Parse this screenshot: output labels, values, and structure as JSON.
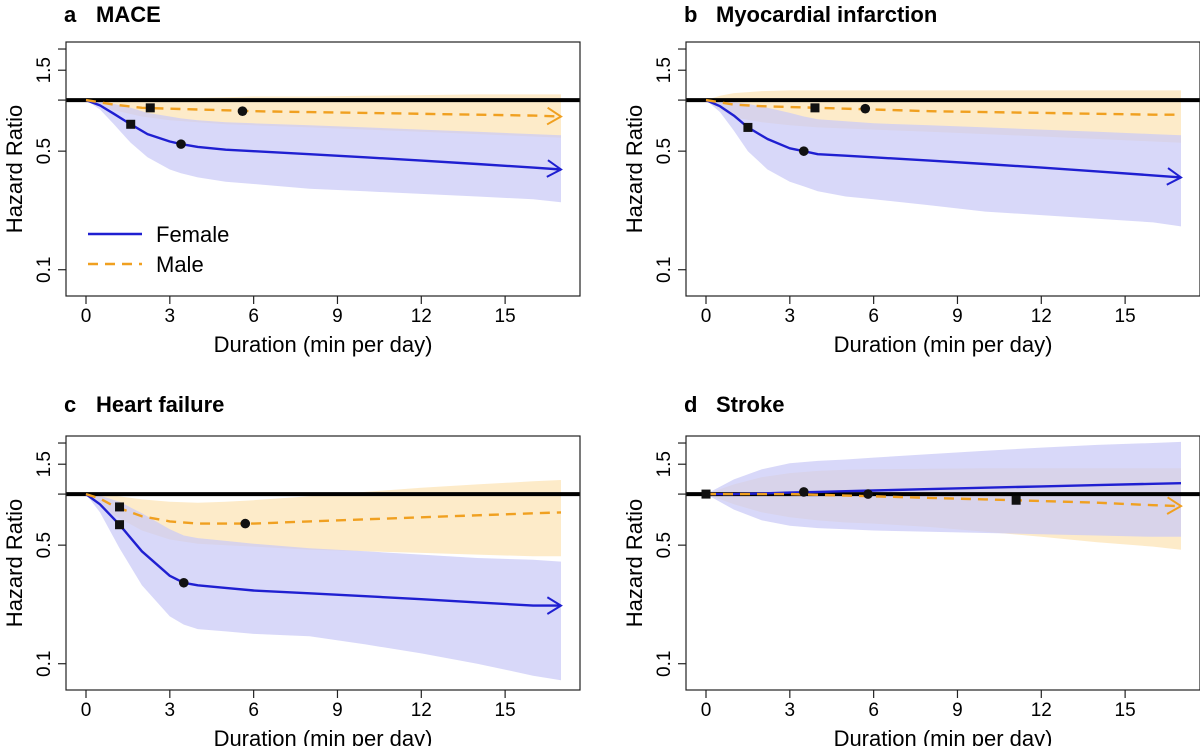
{
  "colors": {
    "female": "#1f1fd1",
    "male": "#f0a020",
    "female_band": "#c9c9f6",
    "male_band": "#fde7c0",
    "reference": "#000000"
  },
  "legend": [
    {
      "name": "Female",
      "style": "solid",
      "color_key": "female"
    },
    {
      "name": "Male",
      "style": "dashed",
      "color_key": "male"
    }
  ],
  "chart_data": [
    {
      "type": "line",
      "letter": "a",
      "title": "MACE",
      "xlabel": "Duration (min per day)",
      "ylabel": "Hazard Ratio",
      "xlim": [
        0,
        17
      ],
      "ylim_log": [
        0.07,
        2.2
      ],
      "xticks": [
        0,
        3,
        6,
        9,
        12,
        15
      ],
      "yticks": [
        0.1,
        0.5,
        1.5
      ],
      "yticks_extra": [
        1.0,
        2.0
      ],
      "xtick_labels": [
        "0",
        "3",
        "6",
        "9",
        "12",
        "15"
      ],
      "ytick_labels": [
        "0.1",
        "0.5",
        "1.5"
      ],
      "reference_line": 1.0,
      "show_legend": true,
      "series": [
        {
          "name": "Female",
          "x": [
            0,
            0.5,
            1,
            1.6,
            2.2,
            3,
            3.4,
            4,
            5,
            6,
            8,
            10,
            12,
            14,
            16,
            17
          ],
          "y": [
            1.0,
            0.93,
            0.83,
            0.72,
            0.63,
            0.57,
            0.55,
            0.53,
            0.51,
            0.5,
            0.48,
            0.46,
            0.44,
            0.42,
            0.4,
            0.39
          ],
          "lower": [
            1.0,
            0.88,
            0.72,
            0.56,
            0.46,
            0.39,
            0.37,
            0.35,
            0.33,
            0.32,
            0.3,
            0.29,
            0.28,
            0.27,
            0.26,
            0.25
          ],
          "upper": [
            1.0,
            0.98,
            0.95,
            0.9,
            0.84,
            0.8,
            0.78,
            0.76,
            0.74,
            0.73,
            0.71,
            0.69,
            0.67,
            0.65,
            0.63,
            0.62
          ],
          "markers": [
            {
              "shape": "square",
              "x": 1.6,
              "y": 0.72
            },
            {
              "shape": "circle",
              "x": 3.4,
              "y": 0.55
            }
          ],
          "arrow": true
        },
        {
          "name": "Male",
          "x": [
            0,
            0.5,
            1,
            2,
            3,
            4,
            5,
            6,
            8,
            10,
            12,
            14,
            16,
            17
          ],
          "y": [
            1.0,
            0.97,
            0.94,
            0.9,
            0.89,
            0.88,
            0.87,
            0.86,
            0.85,
            0.84,
            0.83,
            0.82,
            0.81,
            0.8
          ],
          "lower": [
            1.0,
            0.93,
            0.87,
            0.8,
            0.76,
            0.74,
            0.72,
            0.71,
            0.69,
            0.67,
            0.65,
            0.63,
            0.61,
            0.6
          ],
          "upper": [
            1.0,
            1.01,
            1.02,
            1.03,
            1.03,
            1.03,
            1.04,
            1.05,
            1.05,
            1.06,
            1.07,
            1.08,
            1.08,
            1.08
          ],
          "markers": [
            {
              "shape": "square",
              "x": 2.3,
              "y": 0.9
            },
            {
              "shape": "circle",
              "x": 5.6,
              "y": 0.86
            }
          ],
          "arrow": true
        }
      ]
    },
    {
      "type": "line",
      "letter": "b",
      "title": "Myocardial infarction",
      "xlabel": "Duration (min per day)",
      "ylabel": "Hazard Ratio",
      "xlim": [
        0,
        17
      ],
      "ylim_log": [
        0.07,
        2.2
      ],
      "xticks": [
        0,
        3,
        6,
        9,
        12,
        15
      ],
      "yticks": [
        0.1,
        0.5,
        1.5
      ],
      "yticks_extra": [
        1.0,
        2.0
      ],
      "xtick_labels": [
        "0",
        "3",
        "6",
        "9",
        "12",
        "15"
      ],
      "ytick_labels": [
        "0.1",
        "0.5",
        "1.5"
      ],
      "reference_line": 1.0,
      "show_legend": false,
      "series": [
        {
          "name": "Female",
          "x": [
            0,
            0.5,
            1,
            1.5,
            2.2,
            3,
            3.5,
            4,
            5,
            6,
            8,
            10,
            12,
            14,
            16,
            17
          ],
          "y": [
            1.0,
            0.92,
            0.81,
            0.69,
            0.59,
            0.52,
            0.5,
            0.48,
            0.47,
            0.46,
            0.44,
            0.42,
            0.4,
            0.38,
            0.36,
            0.35
          ],
          "lower": [
            1.0,
            0.85,
            0.66,
            0.5,
            0.39,
            0.33,
            0.31,
            0.29,
            0.27,
            0.26,
            0.24,
            0.22,
            0.21,
            0.2,
            0.19,
            0.18
          ],
          "upper": [
            1.0,
            0.99,
            0.97,
            0.95,
            0.9,
            0.84,
            0.8,
            0.77,
            0.75,
            0.73,
            0.71,
            0.69,
            0.67,
            0.65,
            0.63,
            0.62
          ],
          "markers": [
            {
              "shape": "square",
              "x": 1.5,
              "y": 0.69
            },
            {
              "shape": "circle",
              "x": 3.5,
              "y": 0.5
            }
          ],
          "arrow": true
        },
        {
          "name": "Male",
          "x": [
            0,
            0.5,
            1,
            2,
            3,
            4,
            5,
            6,
            8,
            10,
            12,
            14,
            16,
            17
          ],
          "y": [
            1.0,
            0.97,
            0.94,
            0.92,
            0.91,
            0.9,
            0.89,
            0.88,
            0.86,
            0.85,
            0.84,
            0.83,
            0.82,
            0.82
          ],
          "lower": [
            1.0,
            0.88,
            0.79,
            0.74,
            0.71,
            0.69,
            0.68,
            0.67,
            0.65,
            0.63,
            0.61,
            0.59,
            0.57,
            0.56
          ],
          "upper": [
            1.0,
            1.06,
            1.1,
            1.13,
            1.14,
            1.14,
            1.14,
            1.14,
            1.14,
            1.14,
            1.14,
            1.14,
            1.14,
            1.14
          ],
          "markers": [
            {
              "shape": "square",
              "x": 3.9,
              "y": 0.9
            },
            {
              "shape": "circle",
              "x": 5.7,
              "y": 0.89
            }
          ],
          "arrow": false
        }
      ]
    },
    {
      "type": "line",
      "letter": "c",
      "title": "Heart failure",
      "xlabel": "Duration (min per day)",
      "ylabel": "Hazard Ratio",
      "xlim": [
        0,
        17
      ],
      "ylim_log": [
        0.07,
        2.2
      ],
      "xticks": [
        0,
        3,
        6,
        9,
        12,
        15
      ],
      "yticks": [
        0.1,
        0.5,
        1.5
      ],
      "yticks_extra": [
        1.0,
        2.0
      ],
      "xtick_labels": [
        "0",
        "3",
        "6",
        "9",
        "12",
        "15"
      ],
      "ytick_labels": [
        "0.1",
        "0.5",
        "1.5"
      ],
      "reference_line": 1.0,
      "show_legend": false,
      "series": [
        {
          "name": "Female",
          "x": [
            0,
            0.5,
            1.2,
            2,
            3,
            3.5,
            4,
            5,
            6,
            8,
            10,
            12,
            14,
            16,
            17
          ],
          "y": [
            1.0,
            0.87,
            0.66,
            0.46,
            0.33,
            0.3,
            0.29,
            0.28,
            0.27,
            0.26,
            0.25,
            0.24,
            0.23,
            0.22,
            0.22
          ],
          "lower": [
            1.0,
            0.78,
            0.48,
            0.29,
            0.19,
            0.17,
            0.16,
            0.155,
            0.15,
            0.145,
            0.13,
            0.115,
            0.1,
            0.085,
            0.08
          ],
          "upper": [
            1.0,
            0.98,
            0.9,
            0.77,
            0.62,
            0.57,
            0.55,
            0.53,
            0.51,
            0.48,
            0.46,
            0.44,
            0.42,
            0.41,
            0.4
          ],
          "markers": [
            {
              "shape": "square",
              "x": 1.2,
              "y": 0.66
            },
            {
              "shape": "circle",
              "x": 3.5,
              "y": 0.3
            }
          ],
          "arrow": true
        },
        {
          "name": "Male",
          "x": [
            0,
            0.5,
            1,
            2,
            3,
            4,
            5,
            6,
            8,
            10,
            12,
            14,
            16,
            17
          ],
          "y": [
            1.0,
            0.94,
            0.85,
            0.74,
            0.69,
            0.67,
            0.67,
            0.67,
            0.69,
            0.71,
            0.73,
            0.75,
            0.77,
            0.78
          ],
          "lower": [
            1.0,
            0.88,
            0.75,
            0.61,
            0.54,
            0.51,
            0.5,
            0.49,
            0.47,
            0.46,
            0.45,
            0.44,
            0.43,
            0.43
          ],
          "upper": [
            1.0,
            1.0,
            0.98,
            0.93,
            0.9,
            0.89,
            0.9,
            0.92,
            0.97,
            1.03,
            1.09,
            1.14,
            1.19,
            1.21
          ],
          "markers": [
            {
              "shape": "square",
              "x": 1.2,
              "y": 0.84
            },
            {
              "shape": "circle",
              "x": 5.7,
              "y": 0.67
            }
          ],
          "arrow": false
        }
      ]
    },
    {
      "type": "line",
      "letter": "d",
      "title": "Stroke",
      "xlabel": "Duration (min per day)",
      "ylabel": "Hazard Ratio",
      "xlim": [
        0,
        17
      ],
      "ylim_log": [
        0.07,
        2.2
      ],
      "xticks": [
        0,
        3,
        6,
        9,
        12,
        15
      ],
      "yticks": [
        0.1,
        0.5,
        1.5
      ],
      "yticks_extra": [
        1.0,
        2.0
      ],
      "xtick_labels": [
        "0",
        "3",
        "6",
        "9",
        "12",
        "15"
      ],
      "ytick_labels": [
        "0.1",
        "0.5",
        "1.5"
      ],
      "reference_line": 1.0,
      "show_legend": false,
      "series": [
        {
          "name": "Female",
          "x": [
            0,
            1,
            2,
            3,
            4,
            5,
            6,
            8,
            10,
            12,
            14,
            16,
            17
          ],
          "y": [
            1.0,
            1.0,
            1.01,
            1.02,
            1.03,
            1.04,
            1.05,
            1.07,
            1.09,
            1.11,
            1.13,
            1.15,
            1.16
          ],
          "lower": [
            1.0,
            0.81,
            0.7,
            0.65,
            0.63,
            0.62,
            0.61,
            0.6,
            0.59,
            0.58,
            0.57,
            0.56,
            0.56
          ],
          "upper": [
            1.0,
            1.22,
            1.4,
            1.52,
            1.57,
            1.6,
            1.64,
            1.72,
            1.8,
            1.88,
            1.95,
            2.0,
            2.03
          ],
          "markers": [
            {
              "shape": "circle",
              "x": 3.5,
              "y": 1.03
            },
            {
              "shape": "circle",
              "x": 5.8,
              "y": 1.0
            }
          ],
          "arrow": false
        },
        {
          "name": "Male",
          "x": [
            0,
            1,
            2,
            3,
            4,
            5,
            6,
            8,
            10,
            12,
            14,
            16,
            17
          ],
          "y": [
            1.0,
            1.0,
            1.0,
            1.0,
            0.99,
            0.98,
            0.97,
            0.95,
            0.93,
            0.91,
            0.89,
            0.86,
            0.85
          ],
          "lower": [
            1.0,
            0.87,
            0.78,
            0.73,
            0.7,
            0.68,
            0.67,
            0.64,
            0.6,
            0.56,
            0.52,
            0.49,
            0.47
          ],
          "upper": [
            1.0,
            1.14,
            1.26,
            1.33,
            1.37,
            1.39,
            1.4,
            1.41,
            1.42,
            1.42,
            1.42,
            1.42,
            1.42
          ],
          "markers": [
            {
              "shape": "square",
              "x": 0,
              "y": 1.0
            },
            {
              "shape": "square",
              "x": 11.1,
              "y": 0.92
            }
          ],
          "arrow": true
        }
      ]
    }
  ]
}
